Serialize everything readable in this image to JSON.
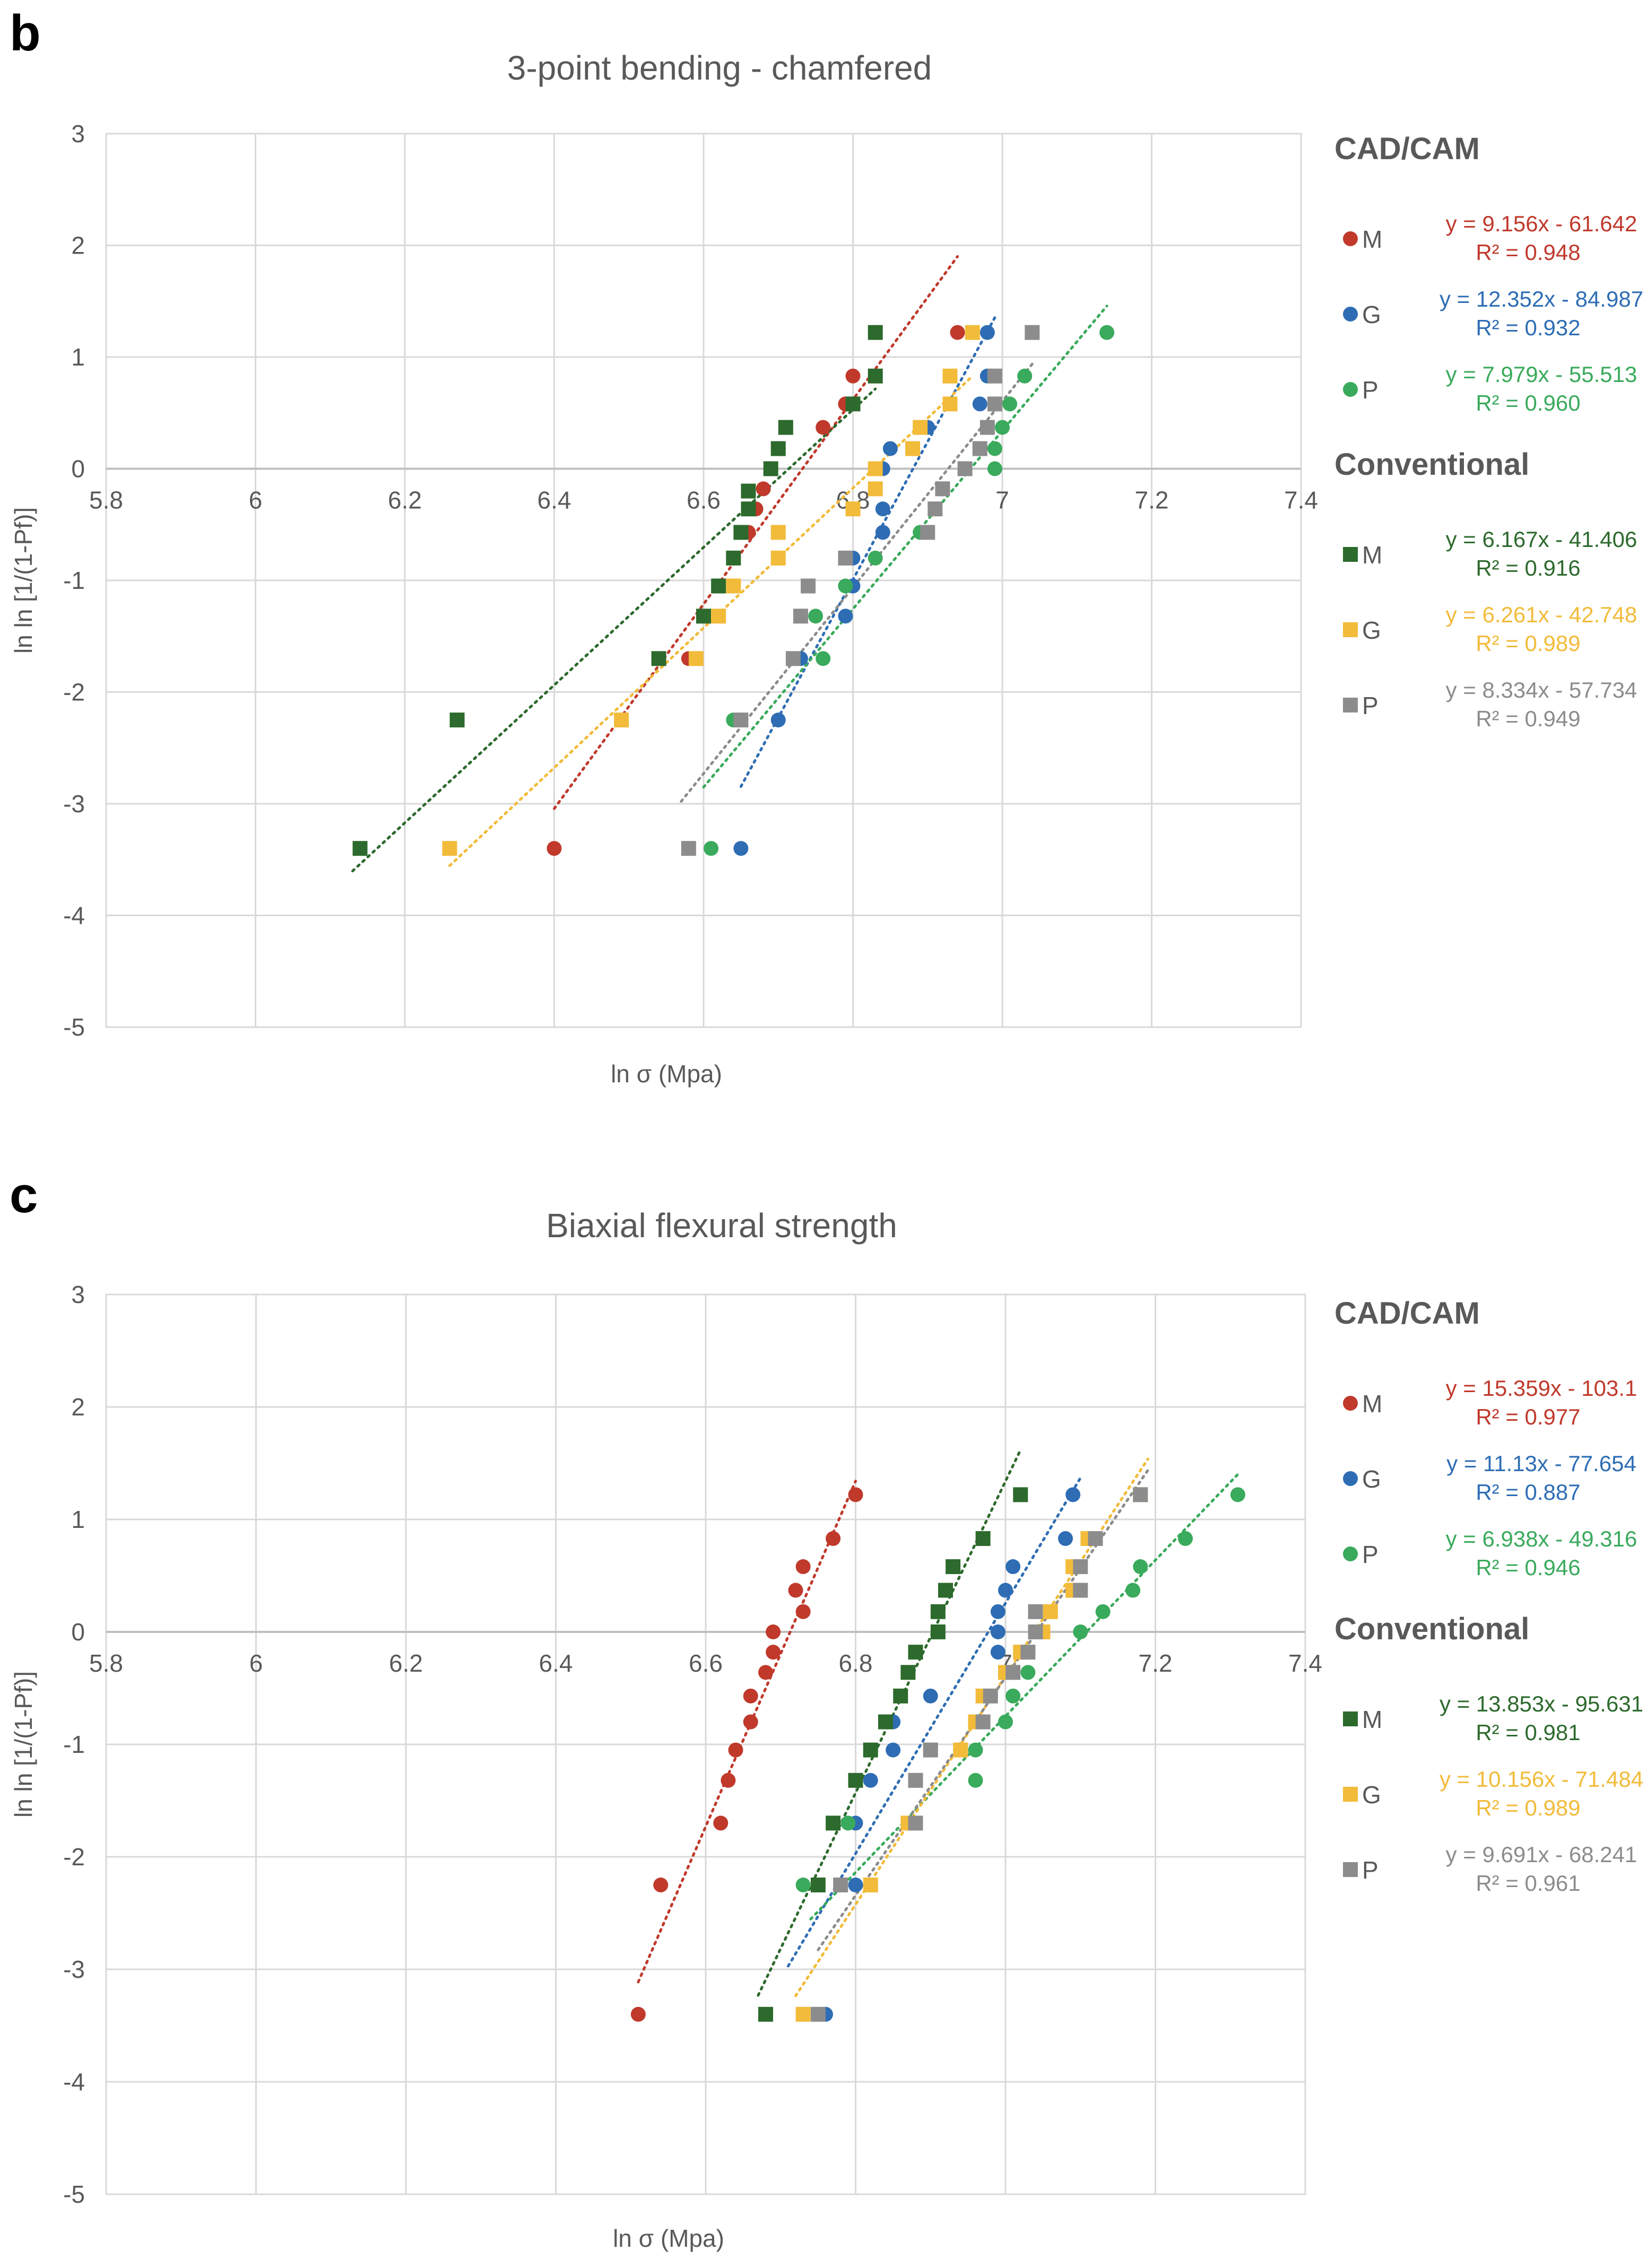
{
  "colors": {
    "M_cad": "#C0392B",
    "G_cad": "#2E6DB4",
    "P_cad": "#3AAA5C",
    "M_conv": "#2D6A2D",
    "G_conv": "#F2BB3A",
    "P_conv": "#8C8C8C",
    "grid": "#D9D9D9",
    "text": "#595959"
  },
  "chart_data": [
    {
      "panel_label": "b",
      "type": "scatter",
      "title": "3-point bending - chamfered",
      "xlabel": "ln σ (Mpa)",
      "ylabel": "ln ln [1/(1-Pf)]",
      "xlim": [
        5.8,
        7.4
      ],
      "ylim": [
        -5,
        3
      ],
      "x_ticks": [
        "5.8",
        "6",
        "6.2",
        "6.4",
        "6.6",
        "6.8",
        "7",
        "7.2",
        "7.4"
      ],
      "y_ticks": [
        "3",
        "2",
        "1",
        "0",
        "-1",
        "-2",
        "-3",
        "-4",
        "-5"
      ],
      "grid": true,
      "legend": {
        "group1_heading": "CAD/CAM",
        "group2_heading": "Conventional",
        "entries": [
          {
            "label": "M",
            "marker": "circle",
            "color": "#C0392B",
            "equation": "y = 9.156x - 61.642",
            "r2": "R² = 0.948"
          },
          {
            "label": "G",
            "marker": "circle",
            "color": "#2E6DB4",
            "equation": "y = 12.352x - 84.987",
            "r2": "R² = 0.932"
          },
          {
            "label": "P",
            "marker": "circle",
            "color": "#3AAA5C",
            "equation": "y = 7.979x - 55.513",
            "r2": "R² = 0.960"
          },
          {
            "label": "M",
            "marker": "square",
            "color": "#2D6A2D",
            "equation": "y = 6.167x - 41.406",
            "r2": "R² = 0.916"
          },
          {
            "label": "G",
            "marker": "square",
            "color": "#F2BB3A",
            "equation": "y = 6.261x - 42.748",
            "r2": "R² = 0.989"
          },
          {
            "label": "P",
            "marker": "square",
            "color": "#8C8C8C",
            "equation": "y = 8.334x - 57.734",
            "r2": "R² = 0.949"
          }
        ]
      },
      "series": [
        {
          "name": "CAD/CAM M",
          "marker": "circle",
          "color": "#C0392B",
          "trend": {
            "slope": 9.156,
            "intercept": -61.642,
            "x_range": [
              6.4,
              6.94
            ]
          },
          "points": [
            [
              6.4,
              -3.4
            ],
            [
              6.58,
              -1.7
            ],
            [
              6.6,
              -1.32
            ],
            [
              6.62,
              -1.05
            ],
            [
              6.64,
              -0.8
            ],
            [
              6.66,
              -0.57
            ],
            [
              6.67,
              -0.36
            ],
            [
              6.68,
              -0.18
            ],
            [
              6.69,
              0
            ],
            [
              6.7,
              0.18
            ],
            [
              6.76,
              0.37
            ],
            [
              6.79,
              0.58
            ],
            [
              6.8,
              0.83
            ],
            [
              6.94,
              1.22
            ]
          ]
        },
        {
          "name": "CAD/CAM G",
          "marker": "circle",
          "color": "#2E6DB4",
          "trend": {
            "slope": 12.352,
            "intercept": -84.987,
            "x_range": [
              6.65,
              6.99
            ]
          },
          "points": [
            [
              6.65,
              -3.4
            ],
            [
              6.7,
              -2.25
            ],
            [
              6.73,
              -1.7
            ],
            [
              6.79,
              -1.32
            ],
            [
              6.8,
              -1.05
            ],
            [
              6.8,
              -0.8
            ],
            [
              6.84,
              -0.57
            ],
            [
              6.84,
              -0.36
            ],
            [
              6.84,
              0
            ],
            [
              6.85,
              0.18
            ],
            [
              6.9,
              0.37
            ],
            [
              6.97,
              0.58
            ],
            [
              6.98,
              0.83
            ],
            [
              6.98,
              1.22
            ]
          ]
        },
        {
          "name": "CAD/CAM P",
          "marker": "circle",
          "color": "#3AAA5C",
          "trend": {
            "slope": 7.979,
            "intercept": -55.513,
            "x_range": [
              6.6,
              7.14
            ]
          },
          "points": [
            [
              6.61,
              -3.4
            ],
            [
              6.64,
              -2.25
            ],
            [
              6.76,
              -1.7
            ],
            [
              6.75,
              -1.32
            ],
            [
              6.79,
              -1.05
            ],
            [
              6.83,
              -0.8
            ],
            [
              6.89,
              -0.57
            ],
            [
              6.92,
              -0.18
            ],
            [
              6.99,
              0
            ],
            [
              6.99,
              0.18
            ],
            [
              7.0,
              0.37
            ],
            [
              7.01,
              0.58
            ],
            [
              7.03,
              0.83
            ],
            [
              7.14,
              1.22
            ]
          ]
        },
        {
          "name": "Conventional M",
          "marker": "square",
          "color": "#2D6A2D",
          "trend": {
            "slope": 6.167,
            "intercept": -41.406,
            "x_range": [
              6.13,
              6.83
            ]
          },
          "points": [
            [
              6.14,
              -3.4
            ],
            [
              6.27,
              -2.25
            ],
            [
              6.54,
              -1.7
            ],
            [
              6.6,
              -1.32
            ],
            [
              6.62,
              -1.05
            ],
            [
              6.64,
              -0.8
            ],
            [
              6.65,
              -0.57
            ],
            [
              6.66,
              -0.36
            ],
            [
              6.66,
              -0.2
            ],
            [
              6.69,
              0
            ],
            [
              6.7,
              0.18
            ],
            [
              6.71,
              0.37
            ],
            [
              6.8,
              0.58
            ],
            [
              6.83,
              0.83
            ],
            [
              6.83,
              1.22
            ]
          ]
        },
        {
          "name": "Conventional G",
          "marker": "square",
          "color": "#F2BB3A",
          "trend": {
            "slope": 6.261,
            "intercept": -42.748,
            "x_range": [
              6.26,
              6.96
            ]
          },
          "points": [
            [
              6.26,
              -3.4
            ],
            [
              6.49,
              -2.25
            ],
            [
              6.59,
              -1.7
            ],
            [
              6.62,
              -1.32
            ],
            [
              6.64,
              -1.05
            ],
            [
              6.7,
              -0.8
            ],
            [
              6.7,
              -0.57
            ],
            [
              6.8,
              -0.36
            ],
            [
              6.83,
              -0.18
            ],
            [
              6.83,
              0
            ],
            [
              6.88,
              0.18
            ],
            [
              6.89,
              0.37
            ],
            [
              6.93,
              0.58
            ],
            [
              6.93,
              0.83
            ],
            [
              6.96,
              1.22
            ]
          ]
        },
        {
          "name": "Conventional P",
          "marker": "square",
          "color": "#8C8C8C",
          "trend": {
            "slope": 8.334,
            "intercept": -57.734,
            "x_range": [
              6.57,
              7.04
            ]
          },
          "points": [
            [
              6.58,
              -3.4
            ],
            [
              6.65,
              -2.25
            ],
            [
              6.72,
              -1.7
            ],
            [
              6.73,
              -1.32
            ],
            [
              6.74,
              -1.05
            ],
            [
              6.79,
              -0.8
            ],
            [
              6.9,
              -0.57
            ],
            [
              6.91,
              -0.36
            ],
            [
              6.92,
              -0.18
            ],
            [
              6.95,
              0
            ],
            [
              6.97,
              0.18
            ],
            [
              6.98,
              0.37
            ],
            [
              6.99,
              0.58
            ],
            [
              6.99,
              0.83
            ],
            [
              7.04,
              1.22
            ]
          ]
        }
      ]
    },
    {
      "panel_label": "c",
      "type": "scatter",
      "title": "Biaxial flexural strength",
      "xlabel": "ln σ (Mpa)",
      "ylabel": "ln ln [1/(1-Pf)]",
      "xlim": [
        5.8,
        7.4
      ],
      "ylim": [
        -5,
        3
      ],
      "x_ticks": [
        "5.8",
        "6",
        "6.2",
        "6.4",
        "6.6",
        "6.8",
        "7",
        "7.2",
        "7.4"
      ],
      "y_ticks": [
        "3",
        "2",
        "1",
        "0",
        "-1",
        "-2",
        "-3",
        "-4",
        "-5"
      ],
      "grid": true,
      "legend": {
        "group1_heading": "CAD/CAM",
        "group2_heading": "Conventional",
        "entries": [
          {
            "label": "M",
            "marker": "circle",
            "color": "#C0392B",
            "equation": "y = 15.359x - 103.1",
            "r2": "R² = 0.977"
          },
          {
            "label": "G",
            "marker": "circle",
            "color": "#2E6DB4",
            "equation": "y = 11.13x - 77.654",
            "r2": "R² = 0.887"
          },
          {
            "label": "P",
            "marker": "circle",
            "color": "#3AAA5C",
            "equation": "y = 6.938x - 49.316",
            "r2": "R² = 0.946"
          },
          {
            "label": "M",
            "marker": "square",
            "color": "#2D6A2D",
            "equation": "y = 13.853x - 95.631",
            "r2": "R² = 0.981"
          },
          {
            "label": "G",
            "marker": "square",
            "color": "#F2BB3A",
            "equation": "y = 10.156x - 71.484",
            "r2": "R² = 0.989"
          },
          {
            "label": "P",
            "marker": "square",
            "color": "#8C8C8C",
            "equation": "y = 9.691x - 68.241",
            "r2": "R² = 0.961"
          }
        ]
      },
      "series": [
        {
          "name": "CAD/CAM M",
          "marker": "circle",
          "color": "#C0392B",
          "trend": {
            "slope": 15.359,
            "intercept": -103.1,
            "x_range": [
              6.51,
              6.8
            ]
          },
          "points": [
            [
              6.51,
              -3.4
            ],
            [
              6.54,
              -2.25
            ],
            [
              6.62,
              -1.7
            ],
            [
              6.63,
              -1.32
            ],
            [
              6.64,
              -1.05
            ],
            [
              6.66,
              -0.8
            ],
            [
              6.66,
              -0.57
            ],
            [
              6.68,
              -0.36
            ],
            [
              6.69,
              -0.18
            ],
            [
              6.69,
              0
            ],
            [
              6.73,
              0.18
            ],
            [
              6.72,
              0.37
            ],
            [
              6.73,
              0.58
            ],
            [
              6.77,
              0.83
            ],
            [
              6.8,
              1.22
            ]
          ]
        },
        {
          "name": "CAD/CAM G",
          "marker": "circle",
          "color": "#2E6DB4",
          "trend": {
            "slope": 11.13,
            "intercept": -77.654,
            "x_range": [
              6.71,
              7.1
            ]
          },
          "points": [
            [
              6.76,
              -3.4
            ],
            [
              6.8,
              -2.25
            ],
            [
              6.8,
              -1.7
            ],
            [
              6.82,
              -1.32
            ],
            [
              6.85,
              -1.05
            ],
            [
              6.85,
              -0.8
            ],
            [
              6.9,
              -0.57
            ],
            [
              6.99,
              -0.18
            ],
            [
              6.99,
              0
            ],
            [
              6.99,
              0.18
            ],
            [
              7.0,
              0.37
            ],
            [
              7.01,
              0.58
            ],
            [
              7.08,
              0.83
            ],
            [
              7.09,
              1.22
            ]
          ]
        },
        {
          "name": "CAD/CAM P",
          "marker": "circle",
          "color": "#3AAA5C",
          "trend": {
            "slope": 6.938,
            "intercept": -49.316,
            "x_range": [
              6.74,
              7.31
            ]
          },
          "points": [
            [
              6.73,
              -3.4
            ],
            [
              6.73,
              -2.25
            ],
            [
              6.79,
              -1.7
            ],
            [
              6.96,
              -1.32
            ],
            [
              6.96,
              -1.05
            ],
            [
              7.0,
              -0.8
            ],
            [
              7.01,
              -0.57
            ],
            [
              7.03,
              -0.36
            ],
            [
              7.1,
              0
            ],
            [
              7.13,
              0.18
            ],
            [
              7.17,
              0.37
            ],
            [
              7.18,
              0.58
            ],
            [
              7.24,
              0.83
            ],
            [
              7.31,
              1.22
            ]
          ]
        },
        {
          "name": "Conventional M",
          "marker": "square",
          "color": "#2D6A2D",
          "trend": {
            "slope": 13.853,
            "intercept": -95.631,
            "x_range": [
              6.67,
              7.02
            ]
          },
          "points": [
            [
              6.68,
              -3.4
            ],
            [
              6.75,
              -2.25
            ],
            [
              6.77,
              -1.7
            ],
            [
              6.8,
              -1.32
            ],
            [
              6.82,
              -1.05
            ],
            [
              6.84,
              -0.8
            ],
            [
              6.86,
              -0.57
            ],
            [
              6.87,
              -0.36
            ],
            [
              6.88,
              -0.18
            ],
            [
              6.91,
              0
            ],
            [
              6.91,
              0.18
            ],
            [
              6.92,
              0.37
            ],
            [
              6.93,
              0.58
            ],
            [
              6.97,
              0.83
            ],
            [
              7.02,
              1.22
            ]
          ]
        },
        {
          "name": "Conventional G",
          "marker": "square",
          "color": "#F2BB3A",
          "trend": {
            "slope": 10.156,
            "intercept": -71.484,
            "x_range": [
              6.72,
              7.19
            ]
          },
          "points": [
            [
              6.73,
              -3.4
            ],
            [
              6.82,
              -2.25
            ],
            [
              6.87,
              -1.7
            ],
            [
              6.88,
              -1.32
            ],
            [
              6.94,
              -1.05
            ],
            [
              6.96,
              -0.8
            ],
            [
              6.97,
              -0.57
            ],
            [
              7.0,
              -0.36
            ],
            [
              7.02,
              -0.18
            ],
            [
              7.05,
              0
            ],
            [
              7.06,
              0.18
            ],
            [
              7.09,
              0.37
            ],
            [
              7.09,
              0.58
            ],
            [
              7.11,
              0.83
            ],
            [
              7.18,
              1.22
            ]
          ]
        },
        {
          "name": "Conventional P",
          "marker": "square",
          "color": "#8C8C8C",
          "trend": {
            "slope": 9.691,
            "intercept": -68.241,
            "x_range": [
              6.75,
              7.19
            ]
          },
          "points": [
            [
              6.75,
              -3.4
            ],
            [
              6.78,
              -2.25
            ],
            [
              6.88,
              -1.7
            ],
            [
              6.88,
              -1.32
            ],
            [
              6.9,
              -1.05
            ],
            [
              6.97,
              -0.8
            ],
            [
              6.98,
              -0.57
            ],
            [
              7.01,
              -0.36
            ],
            [
              7.03,
              -0.18
            ],
            [
              7.04,
              0
            ],
            [
              7.04,
              0.18
            ],
            [
              7.1,
              0.37
            ],
            [
              7.1,
              0.58
            ],
            [
              7.12,
              0.83
            ],
            [
              7.18,
              1.22
            ]
          ]
        }
      ]
    }
  ]
}
